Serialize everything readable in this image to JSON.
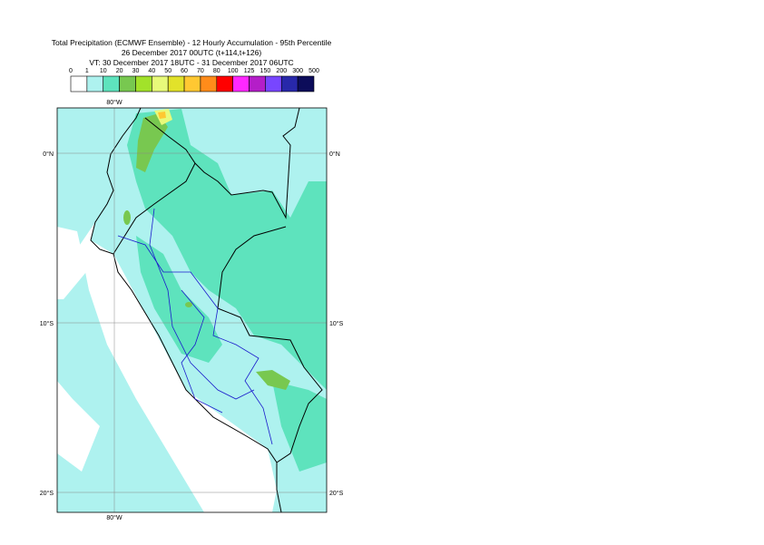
{
  "header": {
    "lines": [
      "Total Precipitation (ECMWF Ensemble) - 12 Hourly Accumulation - 95th Percentile",
      "26 December 2017 00UTC (t+114,t+126)",
      "VT: 30 December 2017 18UTC - 31 December 2017 06UTC"
    ]
  },
  "legend": {
    "labels": [
      "0",
      "1",
      "10",
      "20",
      "30",
      "40",
      "50",
      "60",
      "70",
      "80",
      "100",
      "125",
      "150",
      "200",
      "300",
      "500"
    ],
    "colors": [
      "#ffffff",
      "#aef2ef",
      "#5ee3bd",
      "#78c850",
      "#a2e22a",
      "#e8fa7a",
      "#e2e22a",
      "#ffc832",
      "#ff8c1a",
      "#ff0000",
      "#ff28ff",
      "#b41ec8",
      "#7846ff",
      "#2828aa",
      "#0c0c5a"
    ]
  },
  "map": {
    "lon_labels": [
      "80°W",
      "80°W"
    ],
    "lat_labels_left": [
      "0°N",
      "10°S",
      "20°S"
    ],
    "lat_labels_right": [
      "0°N",
      "10°S",
      "20°S"
    ]
  }
}
